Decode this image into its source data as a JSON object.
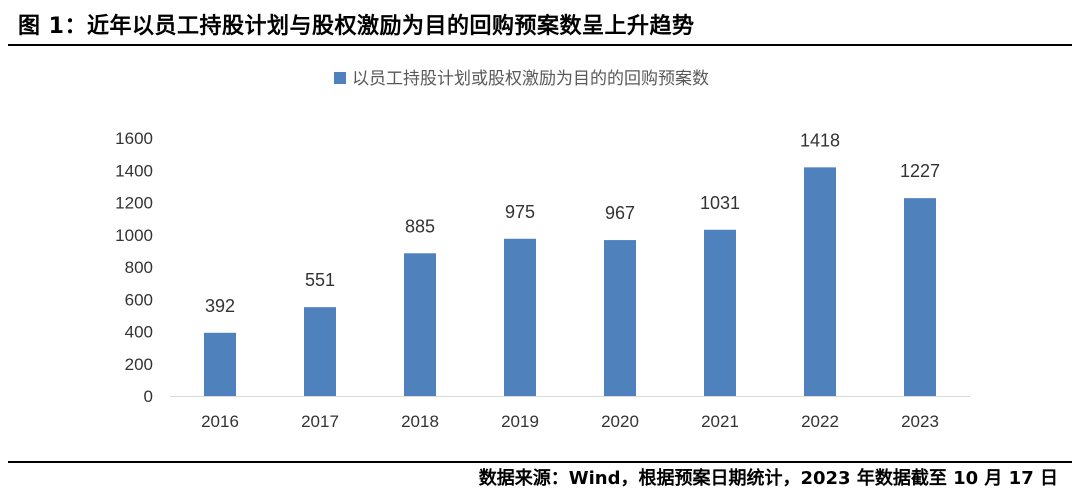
{
  "figure": {
    "title": "图 1：近年以员工持股计划与股权激励为目的回购预案数呈上升趋势",
    "source": "数据来源：Wind，根据预案日期统计，2023 年数据截至 10 月 17 日"
  },
  "chart_data": {
    "type": "bar",
    "categories": [
      "2016",
      "2017",
      "2018",
      "2019",
      "2020",
      "2021",
      "2022",
      "2023"
    ],
    "series": [
      {
        "name": "以员工持股计划或股权激励为目的的回购预案数",
        "values": [
          392,
          551,
          885,
          975,
          967,
          1031,
          1418,
          1227
        ],
        "color": "#4f81bd"
      }
    ],
    "title": "",
    "xlabel": "",
    "ylabel": "",
    "ylim": [
      0,
      1600
    ],
    "yticks": [
      0,
      200,
      400,
      600,
      800,
      1000,
      1200,
      1400,
      1600
    ],
    "grid": false,
    "legend_position": "top-center",
    "data_labels": true
  }
}
